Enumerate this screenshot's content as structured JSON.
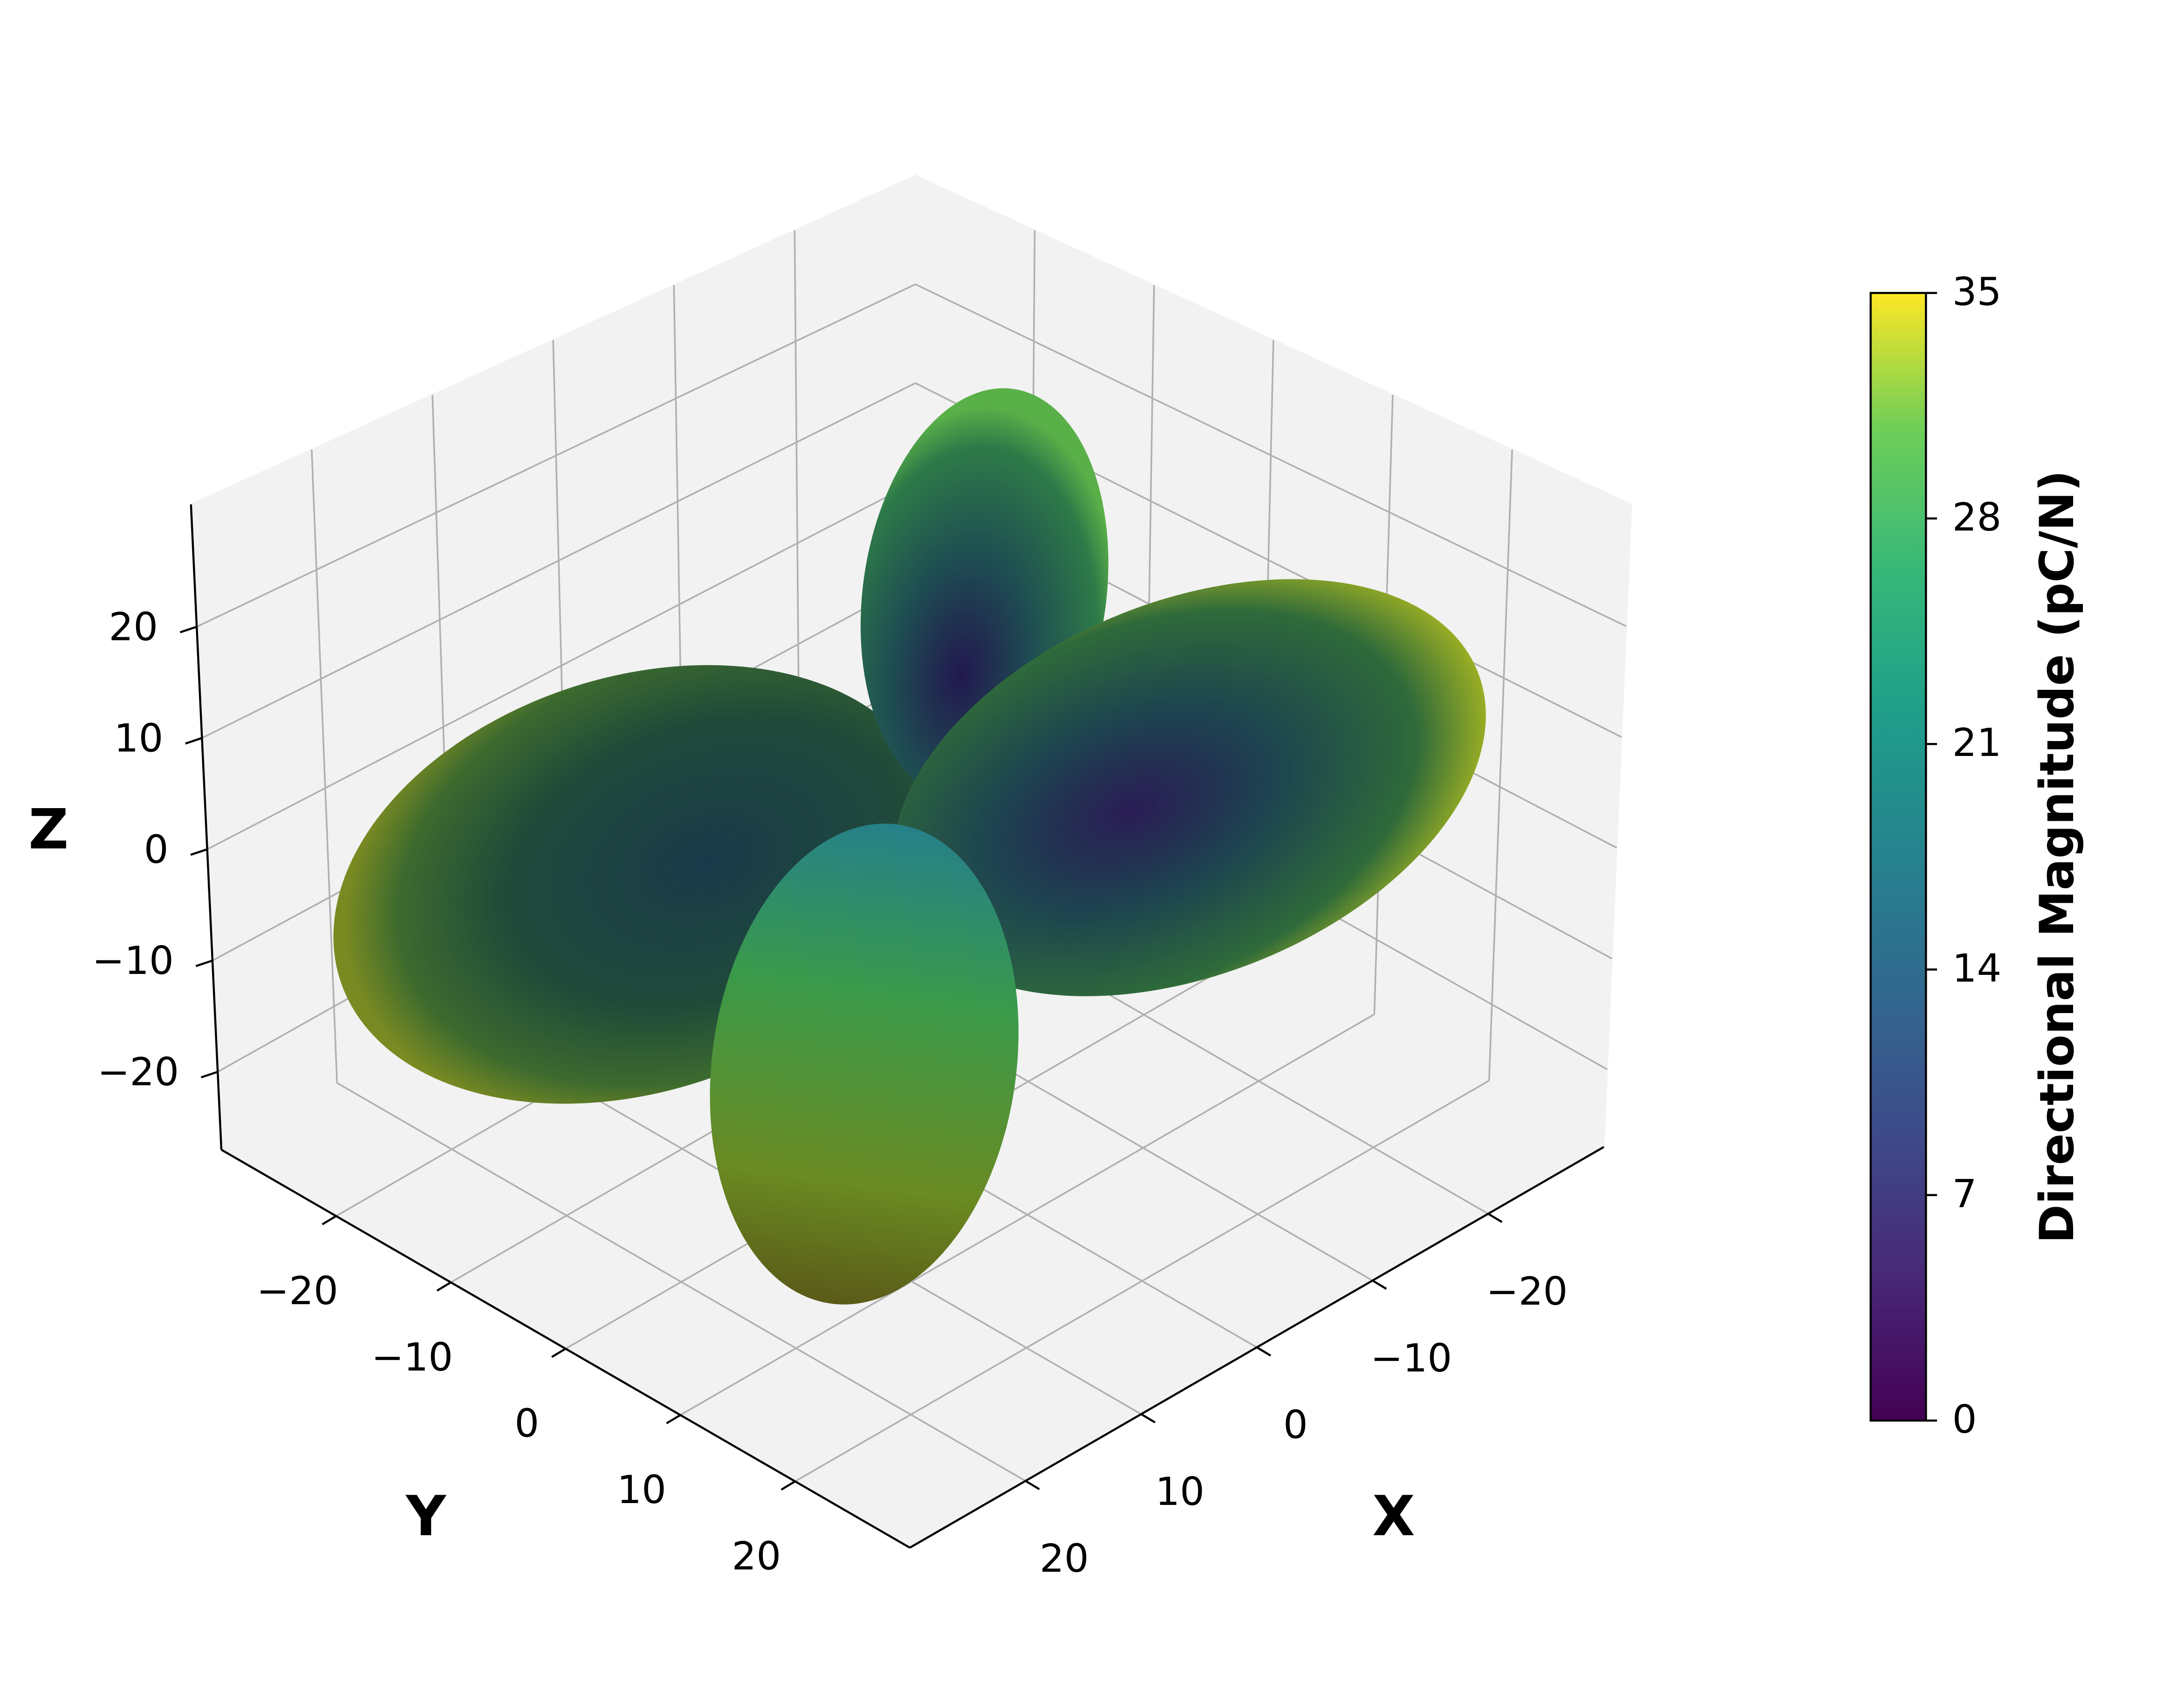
{
  "chart_data": {
    "type": "surface3d",
    "x_label": "X",
    "y_label": "Y",
    "z_label": "Z",
    "xlim": [
      -30,
      30
    ],
    "ylim": [
      -30,
      30
    ],
    "zlim": [
      -27,
      31
    ],
    "xticks": [
      {
        "value": -20,
        "label": "−20"
      },
      {
        "value": -10,
        "label": "−10"
      },
      0,
      10,
      20
    ],
    "yticks": [
      {
        "value": -20,
        "label": "−20"
      },
      {
        "value": -10,
        "label": "−10"
      },
      0,
      10,
      20
    ],
    "zticks": [
      {
        "value": -20,
        "label": "−20"
      },
      {
        "value": -10,
        "label": "−10"
      },
      0,
      10,
      20
    ],
    "grid": true,
    "colorbar": {
      "label": "Directional Magnitude (pC/N)",
      "clim": [
        0,
        35
      ],
      "ticks": [
        0,
        7,
        14,
        21,
        28,
        35
      ]
    }
  }
}
